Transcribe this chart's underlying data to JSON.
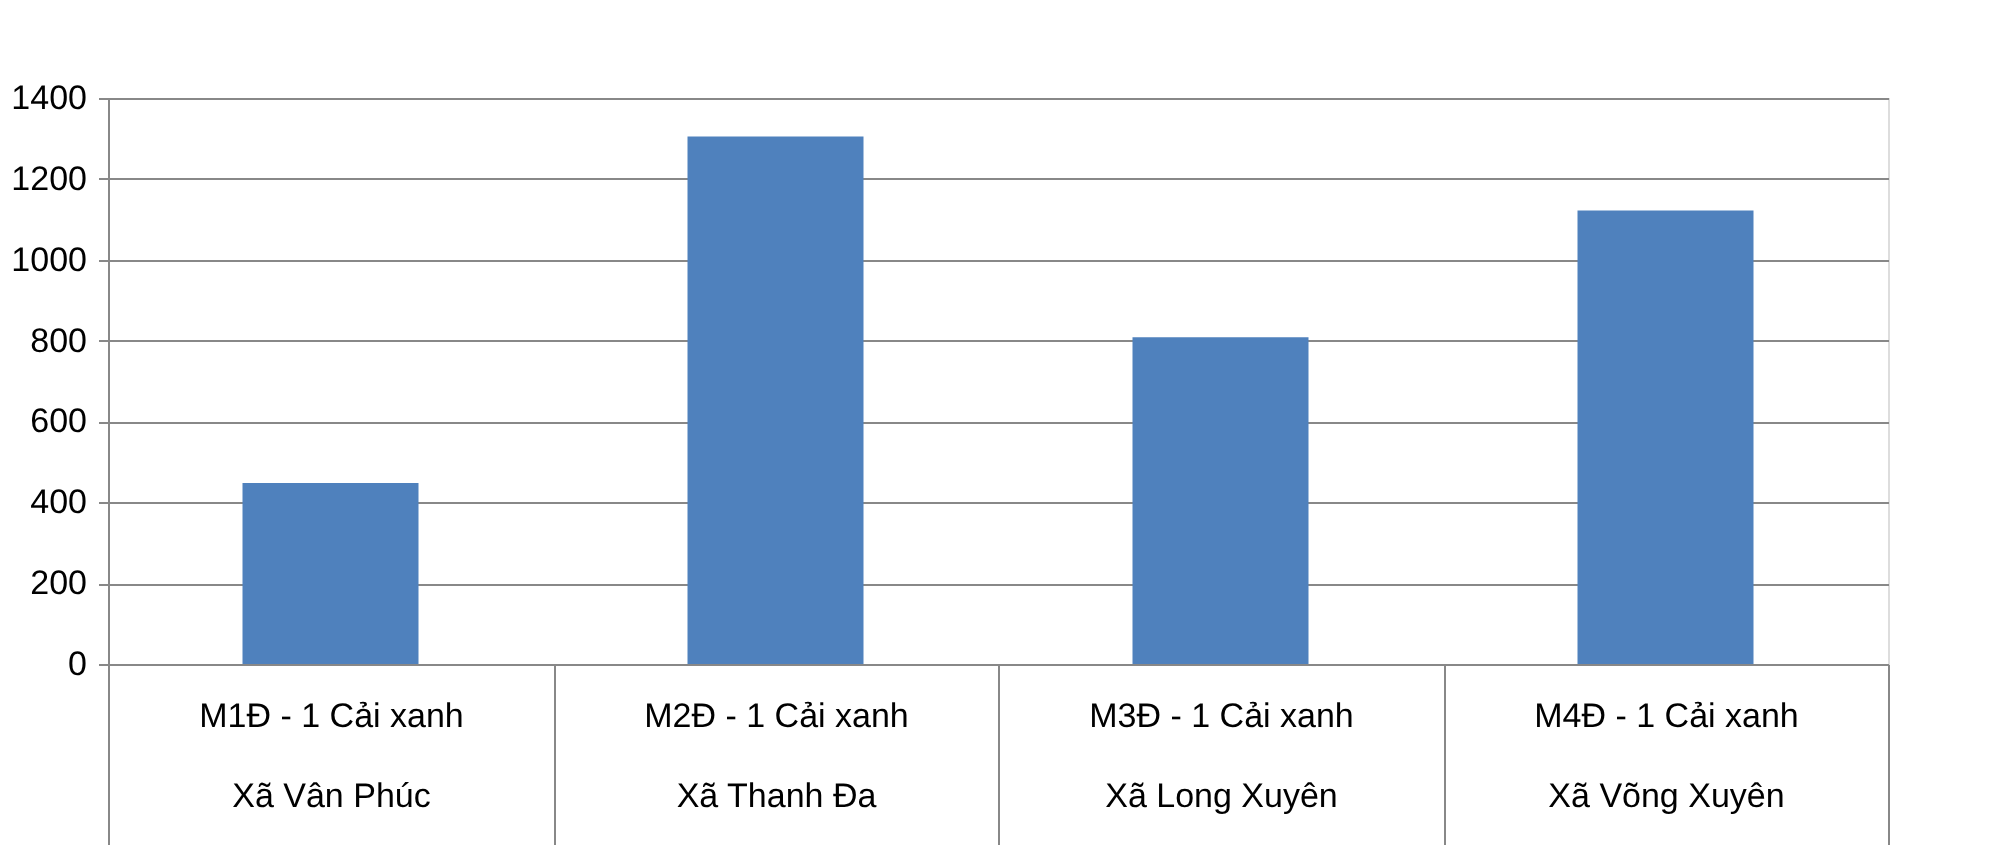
{
  "chart_data": {
    "type": "bar",
    "categories": [
      "M1Đ - 1 Cải xanh\nXã Vân Phúc",
      "M2Đ - 1 Cải xanh\nXã Thanh Đa",
      "M3Đ - 1 Cải xanh\nXã Long Xuyên",
      "M4Đ - 1 Cải xanh\nXã Võng Xuyên"
    ],
    "values": [
      448,
      1305,
      808,
      1122
    ],
    "color": "#4f81bd",
    "ylim": [
      0,
      1400
    ],
    "yticks": [
      0,
      200,
      400,
      600,
      800,
      1000,
      1200,
      1400
    ],
    "grid": "y"
  }
}
